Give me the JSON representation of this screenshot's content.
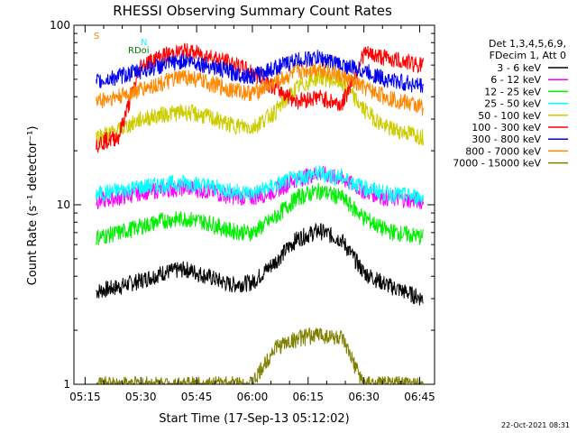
{
  "chart_data": {
    "type": "line",
    "title": "RHESSI Observing Summary Count Rates",
    "xlabel": "Start Time (17-Sep-13 05:12:02)",
    "ylabel": "Count Rate (s⁻¹ detector⁻¹)",
    "y_scale": "log",
    "ylim": [
      1,
      100
    ],
    "y_ticks": [
      {
        "value": 1,
        "label": "1"
      },
      {
        "value": 10,
        "label": "10"
      },
      {
        "value": 100,
        "label": "100"
      }
    ],
    "x_range_minutes": [
      "05:12",
      "06:49"
    ],
    "x_ticks": [
      "05:15",
      "05:30",
      "05:45",
      "06:00",
      "06:15",
      "06:30",
      "06:45"
    ],
    "legend_header": [
      "Det 1,3,4,5,6,9,",
      "FDecim 1, Att 0"
    ],
    "legend_position": "right",
    "series": [
      {
        "name": "3 - 6 keV",
        "color": "#000000",
        "values": [
          3.3,
          3.5,
          3.8,
          4.2,
          4.4,
          4.0,
          3.6,
          3.7,
          4.8,
          6.5,
          7.2,
          6.4,
          4.2,
          3.6,
          3.0
        ]
      },
      {
        "name": "6 - 12 keV",
        "color": "#ff00ff",
        "values": [
          10.5,
          11.0,
          11.8,
          12.2,
          12.5,
          12.0,
          11.2,
          11.0,
          12.0,
          14.0,
          15.0,
          14.0,
          12.0,
          11.0,
          10.5
        ]
      },
      {
        "name": "12 - 25 keV",
        "color": "#00ee00",
        "values": [
          6.6,
          7.0,
          7.6,
          8.2,
          8.4,
          8.0,
          7.2,
          7.0,
          8.5,
          11.0,
          12.0,
          11.0,
          8.5,
          7.2,
          6.6
        ]
      },
      {
        "name": "25 - 50 keV",
        "color": "#00ffff",
        "values": [
          11.5,
          12.0,
          12.6,
          13.0,
          13.3,
          12.8,
          12.0,
          11.6,
          12.8,
          14.2,
          15.0,
          14.2,
          12.5,
          11.6,
          11.0
        ]
      },
      {
        "name": "50 - 100 keV",
        "color": "#cccc00",
        "values": [
          24,
          26,
          30,
          32,
          33,
          31,
          28,
          27,
          33,
          45,
          52,
          48,
          34,
          27,
          24
        ]
      },
      {
        "name": "100 - 300 keV",
        "color": "#ff0000",
        "values": [
          22,
          24,
          60,
          68,
          72,
          68,
          62,
          55,
          45,
          38,
          40,
          36,
          70,
          66,
          60
        ]
      },
      {
        "name": "300 - 800 keV",
        "color": "#0000ee",
        "values": [
          48,
          52,
          56,
          60,
          64,
          60,
          55,
          52,
          58,
          64,
          66,
          60,
          56,
          50,
          46
        ]
      },
      {
        "name": "800 - 7000 keV",
        "color": "#ff8800",
        "values": [
          38,
          40,
          44,
          48,
          52,
          48,
          44,
          42,
          48,
          55,
          58,
          52,
          45,
          40,
          35
        ]
      },
      {
        "name": "7000 - 15000 keV",
        "color": "#808000",
        "values": [
          1,
          1,
          1,
          1,
          1,
          1,
          1,
          1,
          1.6,
          1.8,
          1.9,
          1.8,
          1,
          1,
          1
        ]
      }
    ],
    "series_x": [
      "05:18",
      "05:24",
      "05:30",
      "05:36",
      "05:42",
      "05:48",
      "05:54",
      "06:00",
      "06:06",
      "06:12",
      "06:18",
      "06:24",
      "06:30",
      "06:36",
      "06:46"
    ],
    "flag_labels": [
      {
        "text": "S",
        "color": "#ff8800"
      },
      {
        "text": "N",
        "color": "#00ffff"
      },
      {
        "text": "RDoi",
        "color": "#008000"
      }
    ],
    "footer": "22-Oct-2021 08:31"
  }
}
